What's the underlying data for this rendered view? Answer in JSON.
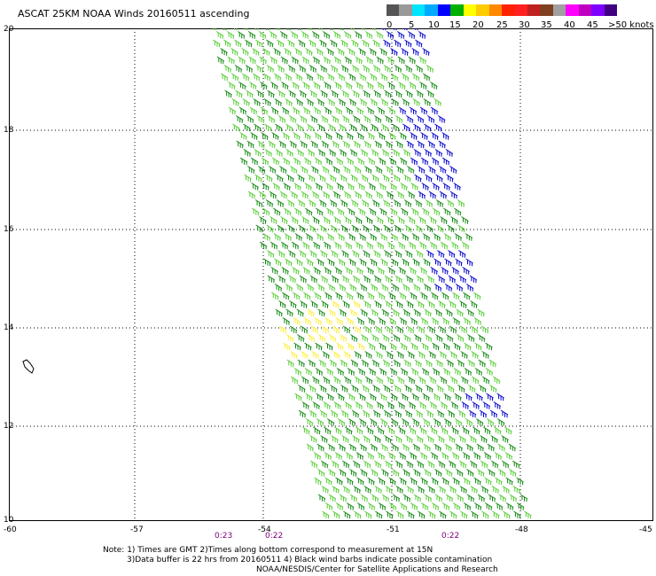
{
  "title": "ASCAT 25KM NOAA Winds 20160511 ascending",
  "legend": {
    "labels": [
      "0",
      "5",
      "10",
      "15",
      "20",
      "25",
      "30",
      "35",
      "40",
      "45",
      ">50 knots"
    ],
    "colors": [
      "#555555",
      "#999999",
      "#00e5ff",
      "#00aaff",
      "#0000ff",
      "#00b000",
      "#ffff00",
      "#ffcc00",
      "#ff8800",
      "#ff2200",
      "#ff2020",
      "#c02020",
      "#804020",
      "#a0a0a0",
      "#ff00ff",
      "#c000c0",
      "#8000ff",
      "#400080"
    ]
  },
  "map": {
    "lat_labels": [
      "20",
      "18",
      "16",
      "14",
      "12",
      "10"
    ],
    "lon_labels": [
      "-60",
      "-57",
      "-54",
      "-51",
      "-48",
      "-45"
    ],
    "time_labels": [
      "0:23",
      "0:22",
      "0:22"
    ],
    "barb_colors": {
      "light": "#55cc33",
      "dark": "#118811",
      "strong": "#0000cc",
      "weak": "#ffee33"
    }
  },
  "note": {
    "line1": "Note: 1) Times are GMT 2)Times along bottom correspond to measurement at 15N",
    "line2": "3)Data buffer is 22 hrs from 20160511 4) Black wind barbs indicate possible contamination",
    "line3": "NOAA/NESDIS/Center for Satellite Applications and Research"
  }
}
